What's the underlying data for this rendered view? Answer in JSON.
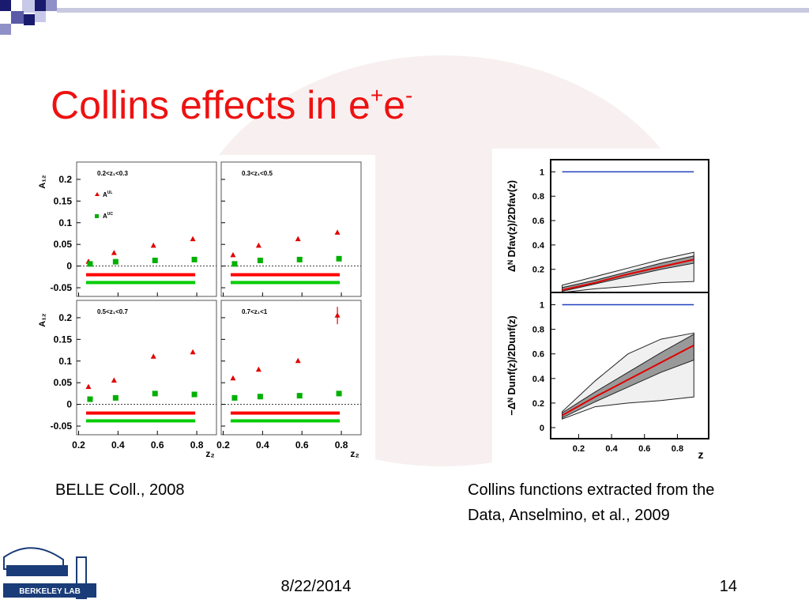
{
  "title": {
    "text": "Collins effects in e",
    "sup1": "+",
    "text2": "e",
    "sup2": "-"
  },
  "chart_data": [
    {
      "type": "scatter",
      "x_label": "z₂",
      "y_label": "A₁₂",
      "xlim": [
        0.19,
        0.9
      ],
      "ylim": [
        -0.07,
        0.24
      ],
      "xticks": [
        0.2,
        0.4,
        0.6,
        0.8
      ],
      "yticks": [
        -0.05,
        0,
        0.05,
        0.1,
        0.15,
        0.2
      ],
      "x": [
        0.25,
        0.38,
        0.58,
        0.78
      ],
      "series_style": [
        {
          "name": "A",
          "sup": "UL",
          "color": "#e00000",
          "marker": "triangle"
        },
        {
          "name": "A",
          "sup": "UC",
          "color": "#00b000",
          "marker": "square"
        }
      ],
      "bands": [
        {
          "color": "#ff0000",
          "value": -0.02
        },
        {
          "color": "#00cc00",
          "value": -0.038
        }
      ],
      "panels": [
        {
          "label": "0.2<z₁<0.3",
          "series": [
            {
              "values": [
                0.01,
                0.03,
                0.047,
                0.062
              ]
            },
            {
              "values": [
                0.005,
                0.01,
                0.013,
                0.015
              ]
            }
          ]
        },
        {
          "label": "0.3<z₁<0.5",
          "series": [
            {
              "values": [
                0.025,
                0.047,
                0.062,
                0.077
              ]
            },
            {
              "values": [
                0.005,
                0.013,
                0.015,
                0.017
              ]
            }
          ]
        },
        {
          "label": "0.5<z₁<0.7",
          "series": [
            {
              "values": [
                0.04,
                0.055,
                0.11,
                0.12
              ]
            },
            {
              "values": [
                0.012,
                0.015,
                0.025,
                0.023
              ]
            }
          ]
        },
        {
          "label": "0.7<z₁<1",
          "series": [
            {
              "values": [
                0.06,
                0.08,
                0.1,
                0.205
              ],
              "errors": [
                null,
                null,
                null,
                0.02
              ]
            },
            {
              "values": [
                0.015,
                0.018,
                0.02,
                0.025
              ]
            }
          ]
        }
      ]
    },
    {
      "type": "line",
      "x_label": "z",
      "xlim": [
        0.03,
        0.99
      ],
      "xticks": [
        0.2,
        0.4,
        0.6,
        0.8
      ],
      "x": [
        0.1,
        0.3,
        0.5,
        0.7,
        0.9
      ],
      "center_color": "#e00000",
      "bound_color": "#2040c0",
      "panels": [
        {
          "y_label": "Δᴺ Dfav(z)/2Dfav(z)",
          "ylim": [
            0.01,
            1.1
          ],
          "yticks": [
            0.2,
            0.4,
            0.6,
            0.8,
            1
          ],
          "bound": 1,
          "center": [
            0.03,
            0.09,
            0.16,
            0.22,
            0.28
          ],
          "inner_lo": [
            0.02,
            0.08,
            0.14,
            0.2,
            0.25
          ],
          "inner_hi": [
            0.05,
            0.11,
            0.18,
            0.25,
            0.31
          ],
          "outer_lo": [
            0.01,
            0.04,
            0.06,
            0.09,
            0.1
          ],
          "outer_hi": [
            0.07,
            0.14,
            0.21,
            0.28,
            0.34
          ]
        },
        {
          "y_label": "−Δᴺ Dunf(z)/2Dunf(z)",
          "ylim": [
            -0.09,
            1.1
          ],
          "yticks": [
            0,
            0.2,
            0.4,
            0.6,
            0.8,
            1
          ],
          "bound": 1,
          "center": [
            0.1,
            0.25,
            0.39,
            0.53,
            0.67
          ],
          "inner_lo": [
            0.08,
            0.21,
            0.33,
            0.45,
            0.55
          ],
          "inner_hi": [
            0.12,
            0.29,
            0.45,
            0.61,
            0.76
          ],
          "outer_lo": [
            0.07,
            0.17,
            0.2,
            0.22,
            0.25
          ],
          "outer_hi": [
            0.13,
            0.38,
            0.6,
            0.72,
            0.77
          ]
        }
      ]
    }
  ],
  "captions": {
    "left": "BELLE Coll., 2008",
    "right": [
      "Collins functions extracted from the",
      "Data, Anselmino, et al., 2009"
    ]
  },
  "footer": {
    "date": "8/22/2014",
    "page": "14",
    "logo_text": "BERKELEY LAB"
  }
}
